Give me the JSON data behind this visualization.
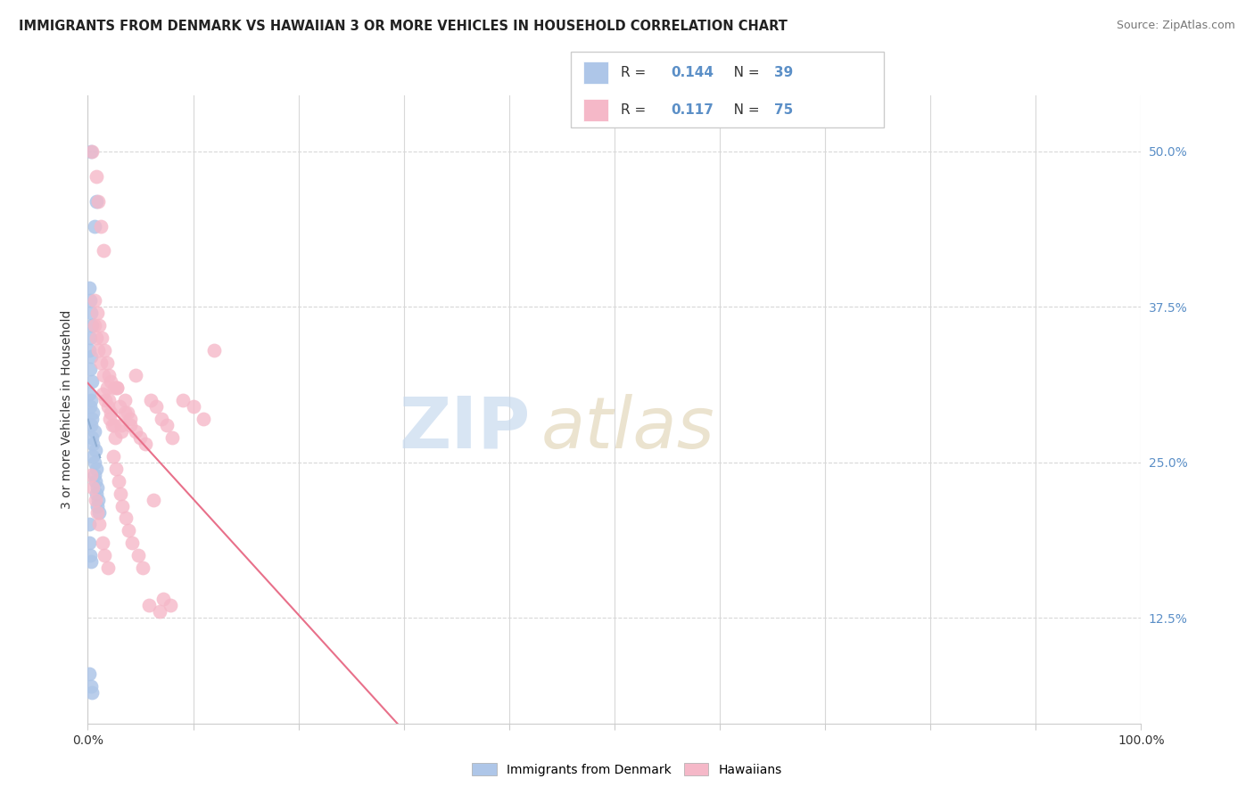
{
  "title": "IMMIGRANTS FROM DENMARK VS HAWAIIAN 3 OR MORE VEHICLES IN HOUSEHOLD CORRELATION CHART",
  "source": "Source: ZipAtlas.com",
  "ylabel": "3 or more Vehicles in Household",
  "legend_blue_R": "0.144",
  "legend_blue_N": "39",
  "legend_pink_R": "0.117",
  "legend_pink_N": "75",
  "blue_color": "#aec6e8",
  "pink_color": "#f5b8c8",
  "blue_line_color": "#5b8fc7",
  "pink_line_color": "#e8708a",
  "dashed_line_color": "#90afd4",
  "xlim": [
    0,
    1.0
  ],
  "ylim": [
    0.04,
    0.545
  ],
  "ytick_values": [
    0.125,
    0.25,
    0.375,
    0.5
  ],
  "ytick_labels": [
    "12.5%",
    "25.0%",
    "37.5%",
    "50.0%"
  ],
  "blue_x": [
    0.003,
    0.008,
    0.006,
    0.001,
    0.002,
    0.003,
    0.004,
    0.002,
    0.001,
    0.003,
    0.002,
    0.004,
    0.001,
    0.003,
    0.002,
    0.005,
    0.004,
    0.003,
    0.006,
    0.004,
    0.005,
    0.007,
    0.005,
    0.006,
    0.008,
    0.006,
    0.007,
    0.009,
    0.008,
    0.01,
    0.009,
    0.011,
    0.001,
    0.002,
    0.003,
    0.001,
    0.001,
    0.003,
    0.004
  ],
  "blue_y": [
    0.5,
    0.46,
    0.44,
    0.39,
    0.38,
    0.37,
    0.36,
    0.35,
    0.34,
    0.335,
    0.325,
    0.315,
    0.305,
    0.3,
    0.295,
    0.29,
    0.285,
    0.28,
    0.275,
    0.27,
    0.265,
    0.26,
    0.255,
    0.25,
    0.245,
    0.24,
    0.235,
    0.23,
    0.225,
    0.22,
    0.215,
    0.21,
    0.185,
    0.175,
    0.17,
    0.2,
    0.08,
    0.07,
    0.065
  ],
  "pink_x": [
    0.004,
    0.008,
    0.012,
    0.015,
    0.01,
    0.006,
    0.009,
    0.011,
    0.013,
    0.016,
    0.018,
    0.02,
    0.022,
    0.025,
    0.014,
    0.017,
    0.019,
    0.021,
    0.023,
    0.026,
    0.028,
    0.03,
    0.032,
    0.035,
    0.038,
    0.04,
    0.045,
    0.05,
    0.055,
    0.06,
    0.065,
    0.07,
    0.075,
    0.08,
    0.09,
    0.1,
    0.11,
    0.12,
    0.006,
    0.008,
    0.01,
    0.012,
    0.015,
    0.018,
    0.02,
    0.022,
    0.025,
    0.028,
    0.032,
    0.035,
    0.04,
    0.045,
    0.003,
    0.005,
    0.007,
    0.009,
    0.011,
    0.014,
    0.016,
    0.019,
    0.024,
    0.027,
    0.029,
    0.031,
    0.033,
    0.036,
    0.039,
    0.042,
    0.048,
    0.052,
    0.058,
    0.062,
    0.068,
    0.072,
    0.078
  ],
  "pink_y": [
    0.5,
    0.48,
    0.44,
    0.42,
    0.46,
    0.38,
    0.37,
    0.36,
    0.35,
    0.34,
    0.33,
    0.32,
    0.315,
    0.31,
    0.305,
    0.3,
    0.295,
    0.285,
    0.28,
    0.27,
    0.31,
    0.295,
    0.275,
    0.3,
    0.29,
    0.28,
    0.32,
    0.27,
    0.265,
    0.3,
    0.295,
    0.285,
    0.28,
    0.27,
    0.3,
    0.295,
    0.285,
    0.34,
    0.36,
    0.35,
    0.34,
    0.33,
    0.32,
    0.31,
    0.3,
    0.29,
    0.28,
    0.31,
    0.28,
    0.29,
    0.285,
    0.275,
    0.24,
    0.23,
    0.22,
    0.21,
    0.2,
    0.185,
    0.175,
    0.165,
    0.255,
    0.245,
    0.235,
    0.225,
    0.215,
    0.205,
    0.195,
    0.185,
    0.175,
    0.165,
    0.135,
    0.22,
    0.13,
    0.14,
    0.135
  ]
}
